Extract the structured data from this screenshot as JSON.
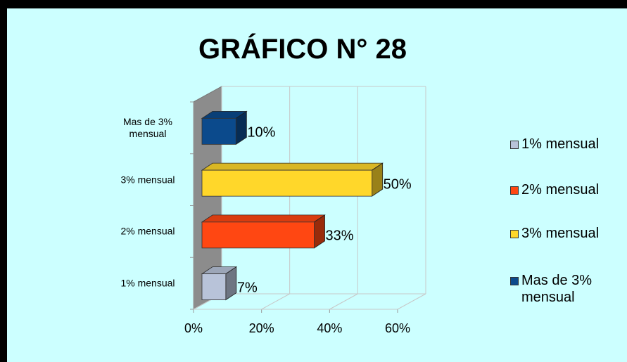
{
  "chart_data": {
    "type": "bar3d_horizontal",
    "title": "GRÁFICO N° 28",
    "categories": [
      "1% mensual",
      "2% mensual",
      "3% mensual",
      "Mas de 3% mensual"
    ],
    "series": [
      {
        "name": "1% mensual",
        "color": "#b8c3d9"
      },
      {
        "name": "2% mensual",
        "color": "#ff4712"
      },
      {
        "name": "3% mensual",
        "color": "#ffd72a"
      },
      {
        "name": "Mas de 3% mensual",
        "color": "#0b4a8c"
      }
    ],
    "values": [
      7,
      33,
      50,
      10
    ],
    "value_labels": [
      "7%",
      "33%",
      "50%",
      "10%"
    ],
    "xlim": [
      0,
      60
    ],
    "xticks": [
      {
        "value": 0,
        "label": "0%"
      },
      {
        "value": 20,
        "label": "20%"
      },
      {
        "value": 40,
        "label": "40%"
      },
      {
        "value": 60,
        "label": "60%"
      }
    ],
    "grid": true,
    "legend": "right"
  }
}
